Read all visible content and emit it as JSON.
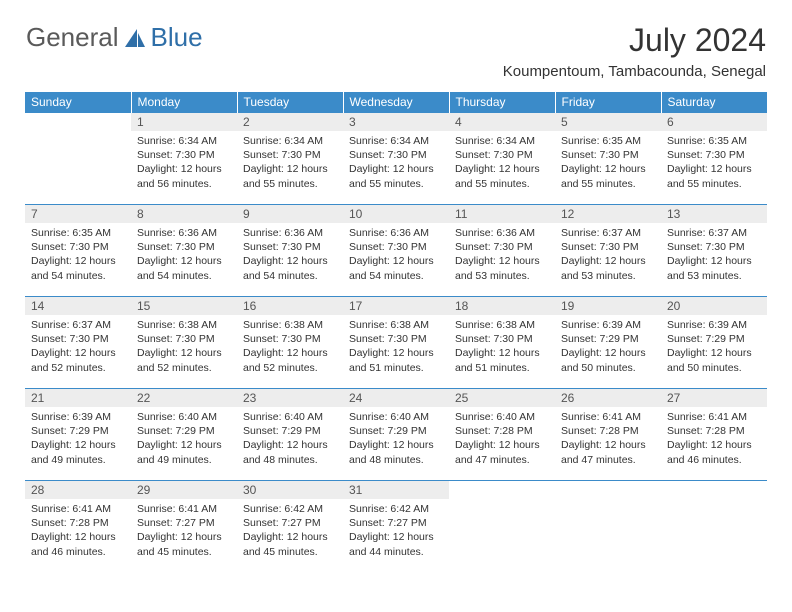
{
  "brand": {
    "word1": "General",
    "word2": "Blue",
    "word1_color": "#6a6a6a",
    "word2_color": "#2f6fa8"
  },
  "title": "July 2024",
  "location": "Koumpentoum, Tambacounda, Senegal",
  "colors": {
    "header_bg": "#3b8bc9",
    "header_text": "#ffffff",
    "daynum_bg": "#ededed",
    "border": "#3b8bc9",
    "text": "#333333"
  },
  "fonts": {
    "title_size": 32,
    "location_size": 15,
    "header_size": 12,
    "daynum_size": 12,
    "body_size": 10.5
  },
  "weekdays": [
    "Sunday",
    "Monday",
    "Tuesday",
    "Wednesday",
    "Thursday",
    "Friday",
    "Saturday"
  ],
  "grid": {
    "rows": 5,
    "cols": 7,
    "first_day_offset": 1,
    "days_in_month": 31
  },
  "days": [
    {
      "n": 1,
      "sunrise": "6:34 AM",
      "sunset": "7:30 PM",
      "daylight": "12 hours and 56 minutes."
    },
    {
      "n": 2,
      "sunrise": "6:34 AM",
      "sunset": "7:30 PM",
      "daylight": "12 hours and 55 minutes."
    },
    {
      "n": 3,
      "sunrise": "6:34 AM",
      "sunset": "7:30 PM",
      "daylight": "12 hours and 55 minutes."
    },
    {
      "n": 4,
      "sunrise": "6:34 AM",
      "sunset": "7:30 PM",
      "daylight": "12 hours and 55 minutes."
    },
    {
      "n": 5,
      "sunrise": "6:35 AM",
      "sunset": "7:30 PM",
      "daylight": "12 hours and 55 minutes."
    },
    {
      "n": 6,
      "sunrise": "6:35 AM",
      "sunset": "7:30 PM",
      "daylight": "12 hours and 55 minutes."
    },
    {
      "n": 7,
      "sunrise": "6:35 AM",
      "sunset": "7:30 PM",
      "daylight": "12 hours and 54 minutes."
    },
    {
      "n": 8,
      "sunrise": "6:36 AM",
      "sunset": "7:30 PM",
      "daylight": "12 hours and 54 minutes."
    },
    {
      "n": 9,
      "sunrise": "6:36 AM",
      "sunset": "7:30 PM",
      "daylight": "12 hours and 54 minutes."
    },
    {
      "n": 10,
      "sunrise": "6:36 AM",
      "sunset": "7:30 PM",
      "daylight": "12 hours and 54 minutes."
    },
    {
      "n": 11,
      "sunrise": "6:36 AM",
      "sunset": "7:30 PM",
      "daylight": "12 hours and 53 minutes."
    },
    {
      "n": 12,
      "sunrise": "6:37 AM",
      "sunset": "7:30 PM",
      "daylight": "12 hours and 53 minutes."
    },
    {
      "n": 13,
      "sunrise": "6:37 AM",
      "sunset": "7:30 PM",
      "daylight": "12 hours and 53 minutes."
    },
    {
      "n": 14,
      "sunrise": "6:37 AM",
      "sunset": "7:30 PM",
      "daylight": "12 hours and 52 minutes."
    },
    {
      "n": 15,
      "sunrise": "6:38 AM",
      "sunset": "7:30 PM",
      "daylight": "12 hours and 52 minutes."
    },
    {
      "n": 16,
      "sunrise": "6:38 AM",
      "sunset": "7:30 PM",
      "daylight": "12 hours and 52 minutes."
    },
    {
      "n": 17,
      "sunrise": "6:38 AM",
      "sunset": "7:30 PM",
      "daylight": "12 hours and 51 minutes."
    },
    {
      "n": 18,
      "sunrise": "6:38 AM",
      "sunset": "7:30 PM",
      "daylight": "12 hours and 51 minutes."
    },
    {
      "n": 19,
      "sunrise": "6:39 AM",
      "sunset": "7:29 PM",
      "daylight": "12 hours and 50 minutes."
    },
    {
      "n": 20,
      "sunrise": "6:39 AM",
      "sunset": "7:29 PM",
      "daylight": "12 hours and 50 minutes."
    },
    {
      "n": 21,
      "sunrise": "6:39 AM",
      "sunset": "7:29 PM",
      "daylight": "12 hours and 49 minutes."
    },
    {
      "n": 22,
      "sunrise": "6:40 AM",
      "sunset": "7:29 PM",
      "daylight": "12 hours and 49 minutes."
    },
    {
      "n": 23,
      "sunrise": "6:40 AM",
      "sunset": "7:29 PM",
      "daylight": "12 hours and 48 minutes."
    },
    {
      "n": 24,
      "sunrise": "6:40 AM",
      "sunset": "7:29 PM",
      "daylight": "12 hours and 48 minutes."
    },
    {
      "n": 25,
      "sunrise": "6:40 AM",
      "sunset": "7:28 PM",
      "daylight": "12 hours and 47 minutes."
    },
    {
      "n": 26,
      "sunrise": "6:41 AM",
      "sunset": "7:28 PM",
      "daylight": "12 hours and 47 minutes."
    },
    {
      "n": 27,
      "sunrise": "6:41 AM",
      "sunset": "7:28 PM",
      "daylight": "12 hours and 46 minutes."
    },
    {
      "n": 28,
      "sunrise": "6:41 AM",
      "sunset": "7:28 PM",
      "daylight": "12 hours and 46 minutes."
    },
    {
      "n": 29,
      "sunrise": "6:41 AM",
      "sunset": "7:27 PM",
      "daylight": "12 hours and 45 minutes."
    },
    {
      "n": 30,
      "sunrise": "6:42 AM",
      "sunset": "7:27 PM",
      "daylight": "12 hours and 45 minutes."
    },
    {
      "n": 31,
      "sunrise": "6:42 AM",
      "sunset": "7:27 PM",
      "daylight": "12 hours and 44 minutes."
    }
  ],
  "labels": {
    "sunrise": "Sunrise:",
    "sunset": "Sunset:",
    "daylight": "Daylight:"
  }
}
